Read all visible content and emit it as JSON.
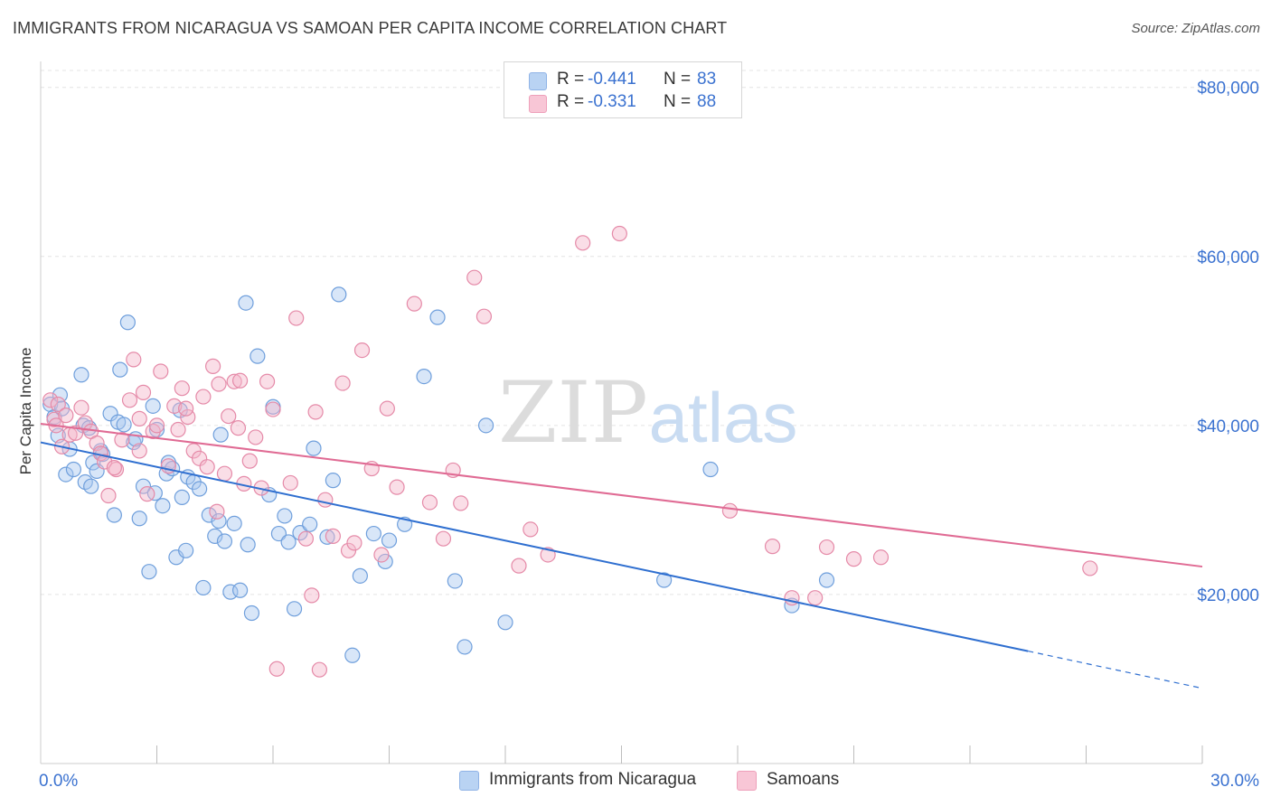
{
  "header": {
    "title": "IMMIGRANTS FROM NICARAGUA VS SAMOAN PER CAPITA INCOME CORRELATION CHART",
    "source": "Source: ZipAtlas.com"
  },
  "watermark": {
    "zip": "ZIP",
    "atlas": "atlas"
  },
  "legend": {
    "rows": [
      {
        "r_label": "R =",
        "r_value": "-0.441",
        "n_label": "N =",
        "n_value": "83"
      },
      {
        "r_label": "R =",
        "r_value": "-0.331",
        "n_label": "N =",
        "n_value": "88"
      }
    ]
  },
  "bottom_legend": {
    "series1": "Immigrants from Nicaragua",
    "series2": "Samoans"
  },
  "colors": {
    "series1_fill": "#a9c8f0",
    "series1_stroke": "#6f9fdc",
    "series1_line": "#2f6fd0",
    "series2_fill": "#f5b6ca",
    "series2_stroke": "#e58aa8",
    "series2_line": "#e06b94",
    "axis_label": "#3b72d0",
    "grid": "#e4e4e4"
  },
  "chart_data": {
    "type": "scatter",
    "title": "IMMIGRANTS FROM NICARAGUA VS SAMOAN PER CAPITA INCOME CORRELATION CHART",
    "xlabel": "",
    "ylabel": "Per Capita Income",
    "xlim": [
      0,
      30
    ],
    "ylim": [
      0,
      82000
    ],
    "x_tick_labels": [
      "0.0%",
      "30.0%"
    ],
    "y_ticks": [
      20000,
      40000,
      60000,
      80000
    ],
    "y_tick_labels": [
      "$20,000",
      "$40,000",
      "$60,000",
      "$80,000"
    ],
    "grid": true,
    "legend_position": "top-center",
    "series": [
      {
        "name": "Immigrants from Nicaragua",
        "r": -0.441,
        "n": 83,
        "trend": {
          "x": [
            0,
            25.5
          ],
          "y": [
            38000,
            13300
          ],
          "dashed_to": [
            30,
            8900
          ]
        },
        "points": [
          [
            0.25,
            42500
          ],
          [
            0.35,
            41000
          ],
          [
            0.45,
            38800
          ],
          [
            0.5,
            43600
          ],
          [
            0.55,
            42000
          ],
          [
            0.65,
            34200
          ],
          [
            0.75,
            37200
          ],
          [
            0.85,
            34800
          ],
          [
            1.05,
            46000
          ],
          [
            1.1,
            40000
          ],
          [
            1.15,
            33300
          ],
          [
            1.3,
            32800
          ],
          [
            1.35,
            35600
          ],
          [
            1.45,
            34600
          ],
          [
            1.55,
            37000
          ],
          [
            1.6,
            36600
          ],
          [
            1.8,
            41400
          ],
          [
            1.9,
            29400
          ],
          [
            2.0,
            40400
          ],
          [
            2.05,
            46600
          ],
          [
            2.15,
            40100
          ],
          [
            2.25,
            52200
          ],
          [
            2.4,
            38000
          ],
          [
            2.45,
            38400
          ],
          [
            2.55,
            29000
          ],
          [
            2.65,
            32800
          ],
          [
            2.8,
            22700
          ],
          [
            2.9,
            42300
          ],
          [
            2.95,
            32000
          ],
          [
            3.0,
            39500
          ],
          [
            3.15,
            30500
          ],
          [
            3.25,
            34300
          ],
          [
            3.3,
            35600
          ],
          [
            3.4,
            34900
          ],
          [
            3.5,
            24400
          ],
          [
            3.65,
            31500
          ],
          [
            3.75,
            25200
          ],
          [
            3.8,
            33900
          ],
          [
            3.95,
            33300
          ],
          [
            4.1,
            32500
          ],
          [
            4.2,
            20800
          ],
          [
            4.35,
            29400
          ],
          [
            4.5,
            26900
          ],
          [
            4.6,
            28700
          ],
          [
            4.75,
            26300
          ],
          [
            4.9,
            20300
          ],
          [
            5.0,
            28400
          ],
          [
            5.15,
            20500
          ],
          [
            5.35,
            25900
          ],
          [
            5.45,
            17800
          ],
          [
            5.6,
            48200
          ],
          [
            5.9,
            31800
          ],
          [
            6.15,
            27200
          ],
          [
            6.3,
            29300
          ],
          [
            6.4,
            26200
          ],
          [
            6.55,
            18300
          ],
          [
            6.7,
            27300
          ],
          [
            6.95,
            28300
          ],
          [
            7.05,
            37300
          ],
          [
            7.4,
            26800
          ],
          [
            7.55,
            33500
          ],
          [
            7.7,
            55500
          ],
          [
            8.05,
            12800
          ],
          [
            8.25,
            22200
          ],
          [
            8.6,
            27200
          ],
          [
            8.9,
            23900
          ],
          [
            9.0,
            26400
          ],
          [
            9.4,
            28300
          ],
          [
            9.9,
            45800
          ],
          [
            10.25,
            52800
          ],
          [
            10.7,
            21600
          ],
          [
            10.95,
            13800
          ],
          [
            11.5,
            40000
          ],
          [
            12.0,
            16700
          ],
          [
            16.1,
            21700
          ],
          [
            17.3,
            34800
          ],
          [
            19.4,
            18700
          ],
          [
            20.3,
            21700
          ],
          [
            5.3,
            54500
          ],
          [
            4.65,
            38900
          ],
          [
            6.0,
            42200
          ],
          [
            3.6,
            41800
          ],
          [
            1.25,
            39700
          ]
        ]
      },
      {
        "name": "Samoans",
        "r": -0.331,
        "n": 88,
        "trend": {
          "x": [
            0,
            30
          ],
          "y": [
            40200,
            23300
          ]
        },
        "points": [
          [
            0.25,
            43000
          ],
          [
            0.35,
            40700
          ],
          [
            0.45,
            42500
          ],
          [
            0.55,
            37500
          ],
          [
            0.65,
            41200
          ],
          [
            0.75,
            38900
          ],
          [
            0.9,
            39100
          ],
          [
            1.05,
            42100
          ],
          [
            1.15,
            40300
          ],
          [
            1.3,
            39300
          ],
          [
            1.45,
            37900
          ],
          [
            1.55,
            36700
          ],
          [
            1.65,
            35700
          ],
          [
            1.75,
            31700
          ],
          [
            1.95,
            34800
          ],
          [
            2.1,
            38300
          ],
          [
            2.3,
            43000
          ],
          [
            2.4,
            47800
          ],
          [
            2.55,
            40800
          ],
          [
            2.65,
            43900
          ],
          [
            2.75,
            31900
          ],
          [
            2.9,
            39300
          ],
          [
            3.0,
            40000
          ],
          [
            3.1,
            46400
          ],
          [
            3.3,
            35200
          ],
          [
            3.45,
            42300
          ],
          [
            3.55,
            39500
          ],
          [
            3.65,
            44400
          ],
          [
            3.8,
            41000
          ],
          [
            3.95,
            37000
          ],
          [
            4.1,
            36100
          ],
          [
            4.2,
            43400
          ],
          [
            4.3,
            35100
          ],
          [
            4.45,
            47000
          ],
          [
            4.6,
            44900
          ],
          [
            4.75,
            34300
          ],
          [
            4.85,
            41100
          ],
          [
            5.0,
            45200
          ],
          [
            5.1,
            39700
          ],
          [
            5.25,
            33100
          ],
          [
            5.4,
            35800
          ],
          [
            5.55,
            38600
          ],
          [
            5.7,
            32600
          ],
          [
            5.85,
            45200
          ],
          [
            6.0,
            41900
          ],
          [
            6.1,
            11200
          ],
          [
            6.45,
            33200
          ],
          [
            6.6,
            52700
          ],
          [
            6.85,
            26600
          ],
          [
            7.0,
            19900
          ],
          [
            7.1,
            41600
          ],
          [
            7.2,
            11100
          ],
          [
            7.35,
            31200
          ],
          [
            7.55,
            26900
          ],
          [
            7.8,
            45000
          ],
          [
            7.95,
            25200
          ],
          [
            8.1,
            26100
          ],
          [
            8.3,
            48900
          ],
          [
            8.55,
            34900
          ],
          [
            8.8,
            24700
          ],
          [
            8.95,
            42000
          ],
          [
            9.2,
            32700
          ],
          [
            9.65,
            54400
          ],
          [
            10.05,
            30900
          ],
          [
            10.4,
            26600
          ],
          [
            10.65,
            34700
          ],
          [
            10.85,
            30800
          ],
          [
            11.2,
            57500
          ],
          [
            11.45,
            52900
          ],
          [
            12.35,
            23400
          ],
          [
            12.65,
            27700
          ],
          [
            13.1,
            24700
          ],
          [
            14.0,
            61600
          ],
          [
            14.95,
            62700
          ],
          [
            17.8,
            29900
          ],
          [
            18.9,
            25700
          ],
          [
            19.4,
            19600
          ],
          [
            20.0,
            19600
          ],
          [
            20.3,
            25600
          ],
          [
            21.0,
            24200
          ],
          [
            21.7,
            24400
          ],
          [
            27.1,
            23100
          ],
          [
            2.55,
            37000
          ],
          [
            3.75,
            42000
          ],
          [
            0.4,
            40000
          ],
          [
            4.55,
            29800
          ],
          [
            1.9,
            35000
          ],
          [
            5.15,
            45300
          ]
        ]
      }
    ]
  }
}
